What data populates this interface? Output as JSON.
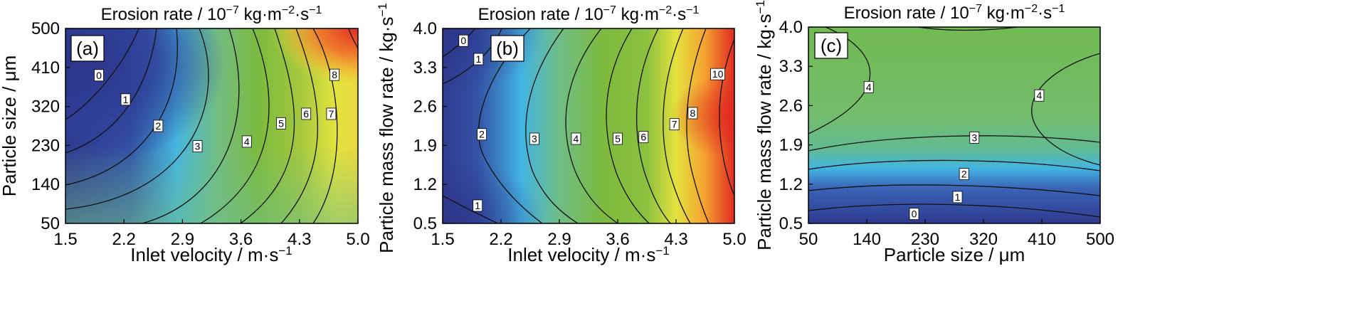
{
  "chart_data": [
    {
      "type": "contour",
      "panel_label": "(a)",
      "title": "Erosion rate / 10−7 kg·m−2·s−1",
      "title_parts": {
        "prefix": "Erosion rate / 10",
        "sup1": "−7",
        "mid": " kg·m",
        "sup2": "−2",
        "mid2": "·s",
        "sup3": "−1"
      },
      "xlabel": "Inlet velocity / m·s",
      "xlabel_sup": "−1",
      "ylabel": "Particle size / μm",
      "xlim": [
        1.5,
        5.0
      ],
      "ylim": [
        50,
        500
      ],
      "xticks": [
        "1.5",
        "2.2",
        "2.9",
        "3.6",
        "4.3",
        "5.0"
      ],
      "yticks": [
        "50",
        "140",
        "230",
        "320",
        "410",
        "500"
      ],
      "contour_levels": [
        0,
        1,
        2,
        3,
        4,
        5,
        6,
        7,
        8
      ],
      "contour_labels": [
        {
          "text": "0",
          "x": 1.9,
          "y": 392
        },
        {
          "text": "1",
          "x": 2.22,
          "y": 336
        },
        {
          "text": "2",
          "x": 2.61,
          "y": 275
        },
        {
          "text": "3",
          "x": 3.08,
          "y": 228
        },
        {
          "text": "4",
          "x": 3.67,
          "y": 239
        },
        {
          "text": "5",
          "x": 4.08,
          "y": 281
        },
        {
          "text": "6",
          "x": 4.38,
          "y": 303
        },
        {
          "text": "7",
          "x": 4.68,
          "y": 303
        },
        {
          "text": "8",
          "x": 4.72,
          "y": 393
        }
      ],
      "colorscale": [
        "#2f3a8f",
        "#3a62b8",
        "#43b4e2",
        "#6fbd87",
        "#7dba3e",
        "#9ac440",
        "#e3e23e",
        "#f5a030",
        "#e02a22"
      ]
    },
    {
      "type": "contour",
      "panel_label": "(b)",
      "title": "Erosion rate / 10−7 kg·m−2·s−1",
      "title_parts": {
        "prefix": "Erosion rate / 10",
        "sup1": "−7",
        "mid": " kg·m",
        "sup2": "−2",
        "mid2": "·s",
        "sup3": "−1"
      },
      "xlabel": "Inlet velocity / m·s",
      "xlabel_sup": "−1",
      "ylabel": "Particle mass flow rate / kg·s",
      "ylabel_sup": "−1",
      "xlim": [
        1.5,
        5.0
      ],
      "ylim": [
        0.5,
        4.0
      ],
      "xticks": [
        "1.5",
        "2.2",
        "2.9",
        "3.6",
        "4.3",
        "5.0"
      ],
      "yticks": [
        "0.5",
        "1.2",
        "1.9",
        "2.6",
        "3.3",
        "4.0"
      ],
      "contour_levels": [
        0,
        1,
        2,
        3,
        4,
        5,
        6,
        7,
        8,
        10
      ],
      "contour_labels": [
        {
          "text": "0",
          "x": 1.75,
          "y": 3.78
        },
        {
          "text": "1",
          "x": 1.93,
          "y": 3.45
        },
        {
          "text": "2",
          "x": 1.97,
          "y": 2.1
        },
        {
          "text": "3",
          "x": 2.6,
          "y": 2.02
        },
        {
          "text": "4",
          "x": 3.1,
          "y": 2.02
        },
        {
          "text": "5",
          "x": 3.6,
          "y": 2.02
        },
        {
          "text": "6",
          "x": 3.91,
          "y": 2.05
        },
        {
          "text": "7",
          "x": 4.28,
          "y": 2.28
        },
        {
          "text": "8",
          "x": 4.5,
          "y": 2.48
        },
        {
          "text": "10",
          "x": 4.8,
          "y": 3.18
        },
        {
          "text": "1",
          "x": 1.92,
          "y": 0.82
        }
      ],
      "colorscale": [
        "#2f3a8f",
        "#3a62b8",
        "#43b4e2",
        "#6fbd87",
        "#7dba3e",
        "#9ac440",
        "#e3e23e",
        "#f5a030",
        "#e02a22"
      ]
    },
    {
      "type": "contour",
      "panel_label": "(c)",
      "title": "Erosion rate / 10−7 kg·m−2·s−1",
      "title_parts": {
        "prefix": "Erosion rate / 10",
        "sup1": "−7",
        "mid": " kg·m",
        "sup2": "−2",
        "mid2": "·s",
        "sup3": "−1"
      },
      "xlabel": "Particle size / μm",
      "ylabel": "Particle mass flow rate / kg·s",
      "ylabel_sup": "−1",
      "xlim": [
        50,
        500
      ],
      "ylim": [
        0.5,
        4.0
      ],
      "xticks": [
        "50",
        "140",
        "230",
        "320",
        "410",
        "500"
      ],
      "yticks": [
        "0.5",
        "1.2",
        "1.9",
        "2.6",
        "3.3",
        "4.0"
      ],
      "contour_levels": [
        0,
        1,
        2,
        3,
        4
      ],
      "contour_labels": [
        {
          "text": "4",
          "x": 143,
          "y": 2.93
        },
        {
          "text": "4",
          "x": 406,
          "y": 2.78
        },
        {
          "text": "3",
          "x": 306,
          "y": 2.03
        },
        {
          "text": "2",
          "x": 290,
          "y": 1.38
        },
        {
          "text": "1",
          "x": 280,
          "y": 0.97
        },
        {
          "text": "0",
          "x": 213,
          "y": 0.67
        }
      ],
      "colorscale": [
        "#2f3a8f",
        "#3a62b8",
        "#43b4e2",
        "#6fbd87",
        "#7dba3e",
        "#9ac440",
        "#e3e23e",
        "#f5a030",
        "#e02a22"
      ]
    }
  ]
}
